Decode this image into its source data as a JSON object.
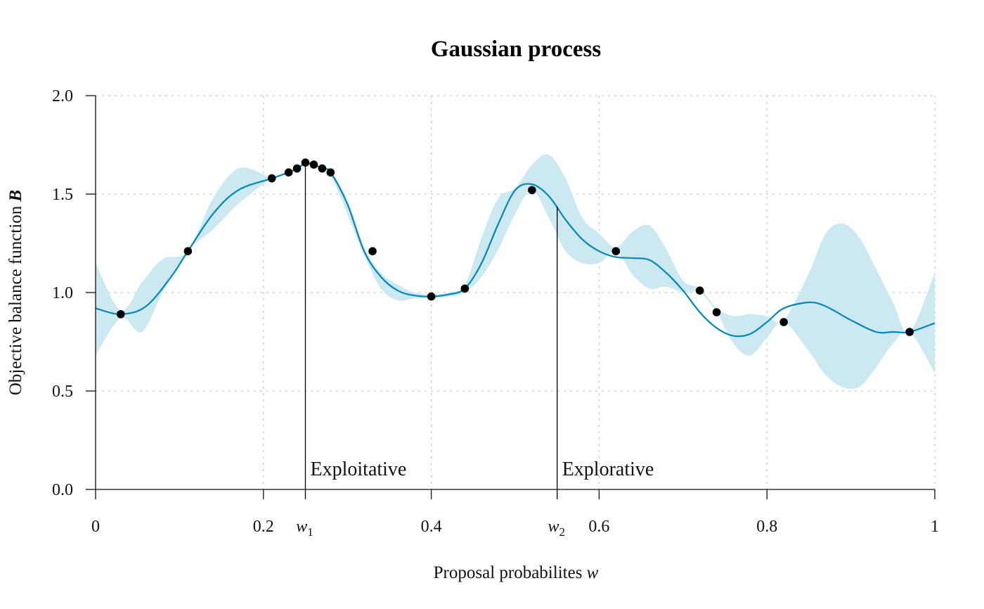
{
  "chart_data": {
    "type": "line",
    "title": "Gaussian process",
    "xlabel": "Proposal probabilites",
    "xlabel_var": "w",
    "ylabel": "Objective balance function",
    "ylabel_var": "B",
    "xlim": [
      0,
      1
    ],
    "ylim": [
      0,
      2.0
    ],
    "xticks": [
      {
        "value": 0,
        "label": "0"
      },
      {
        "value": 0.2,
        "label": "0.2"
      },
      {
        "value": 0.4,
        "label": "0.4"
      },
      {
        "value": 0.6,
        "label": "0.6"
      },
      {
        "value": 0.8,
        "label": "0.8"
      },
      {
        "value": 1,
        "label": "1"
      }
    ],
    "yticks": [
      {
        "value": 0.0,
        "label": "0.0"
      },
      {
        "value": 0.5,
        "label": "0.5"
      },
      {
        "value": 1.0,
        "label": "1.0"
      },
      {
        "value": 1.5,
        "label": "1.5"
      },
      {
        "value": 2.0,
        "label": "2.0"
      }
    ],
    "grid": true,
    "colors": {
      "mean": "#0088bb",
      "band": "#cce8f1",
      "points": "#000000",
      "markers": "#000000"
    },
    "mean": {
      "x": [
        0,
        0.03,
        0.06,
        0.09,
        0.11,
        0.14,
        0.17,
        0.21,
        0.23,
        0.24,
        0.25,
        0.26,
        0.27,
        0.28,
        0.3,
        0.32,
        0.34,
        0.36,
        0.38,
        0.4,
        0.42,
        0.44,
        0.46,
        0.48,
        0.5,
        0.52,
        0.54,
        0.56,
        0.58,
        0.6,
        0.62,
        0.64,
        0.66,
        0.68,
        0.7,
        0.72,
        0.74,
        0.76,
        0.78,
        0.8,
        0.82,
        0.85,
        0.87,
        0.9,
        0.93,
        0.95,
        0.97,
        1.0
      ],
      "y": [
        0.92,
        0.89,
        0.93,
        1.08,
        1.21,
        1.4,
        1.52,
        1.58,
        1.61,
        1.63,
        1.655,
        1.65,
        1.63,
        1.61,
        1.45,
        1.21,
        1.08,
        1.01,
        0.985,
        0.98,
        0.99,
        1.02,
        1.15,
        1.35,
        1.52,
        1.55,
        1.49,
        1.37,
        1.27,
        1.21,
        1.18,
        1.175,
        1.165,
        1.1,
        1.01,
        0.9,
        0.82,
        0.78,
        0.79,
        0.85,
        0.92,
        0.95,
        0.93,
        0.86,
        0.8,
        0.8,
        0.8,
        0.845
      ]
    },
    "confidence_band": {
      "x": [
        0,
        0.03,
        0.055,
        0.08,
        0.11,
        0.14,
        0.17,
        0.2,
        0.21,
        0.23,
        0.25,
        0.27,
        0.28,
        0.3,
        0.32,
        0.34,
        0.36,
        0.38,
        0.4,
        0.42,
        0.44,
        0.46,
        0.48,
        0.5,
        0.52,
        0.54,
        0.56,
        0.58,
        0.6,
        0.62,
        0.64,
        0.66,
        0.68,
        0.7,
        0.72,
        0.74,
        0.76,
        0.78,
        0.8,
        0.82,
        0.85,
        0.87,
        0.89,
        0.91,
        0.93,
        0.95,
        0.97,
        1.0
      ],
      "upper": [
        1.15,
        0.91,
        1.05,
        1.17,
        1.21,
        1.48,
        1.63,
        1.6,
        1.58,
        1.61,
        1.66,
        1.635,
        1.62,
        1.47,
        1.23,
        1.1,
        1.04,
        1.0,
        0.99,
        1.0,
        1.04,
        1.28,
        1.48,
        1.53,
        1.65,
        1.7,
        1.58,
        1.38,
        1.3,
        1.23,
        1.31,
        1.34,
        1.22,
        1.06,
        1.02,
        0.92,
        0.88,
        0.89,
        0.88,
        0.86,
        1.1,
        1.3,
        1.35,
        1.28,
        1.12,
        0.95,
        0.8,
        1.1
      ],
      "lower": [
        0.68,
        0.87,
        0.8,
        1.0,
        1.21,
        1.32,
        1.45,
        1.55,
        1.58,
        1.61,
        1.65,
        1.625,
        1.6,
        1.4,
        1.19,
        1.02,
        0.96,
        0.97,
        0.97,
        0.98,
        1.0,
        1.08,
        1.22,
        1.4,
        1.52,
        1.38,
        1.21,
        1.15,
        1.15,
        1.21,
        1.09,
        1.02,
        1.03,
        1.0,
        1.0,
        0.9,
        0.74,
        0.68,
        0.77,
        0.85,
        0.7,
        0.58,
        0.52,
        0.52,
        0.62,
        0.74,
        0.8,
        0.59
      ]
    },
    "observations": [
      {
        "x": 0.03,
        "y": 0.89
      },
      {
        "x": 0.11,
        "y": 1.21
      },
      {
        "x": 0.21,
        "y": 1.58
      },
      {
        "x": 0.23,
        "y": 1.61
      },
      {
        "x": 0.24,
        "y": 1.63
      },
      {
        "x": 0.25,
        "y": 1.66
      },
      {
        "x": 0.26,
        "y": 1.65
      },
      {
        "x": 0.27,
        "y": 1.63
      },
      {
        "x": 0.28,
        "y": 1.61
      },
      {
        "x": 0.33,
        "y": 1.21
      },
      {
        "x": 0.4,
        "y": 0.98
      },
      {
        "x": 0.44,
        "y": 1.02
      },
      {
        "x": 0.52,
        "y": 1.52
      },
      {
        "x": 0.62,
        "y": 1.21
      },
      {
        "x": 0.72,
        "y": 1.01
      },
      {
        "x": 0.74,
        "y": 0.9
      },
      {
        "x": 0.82,
        "y": 0.85
      },
      {
        "x": 0.97,
        "y": 0.8
      }
    ],
    "vertical_markers": [
      {
        "x": 0.25,
        "label": "w",
        "subscript": "1",
        "annotation": "Exploitative"
      },
      {
        "x": 0.55,
        "label": "w",
        "subscript": "2",
        "annotation": "Explorative"
      }
    ]
  }
}
